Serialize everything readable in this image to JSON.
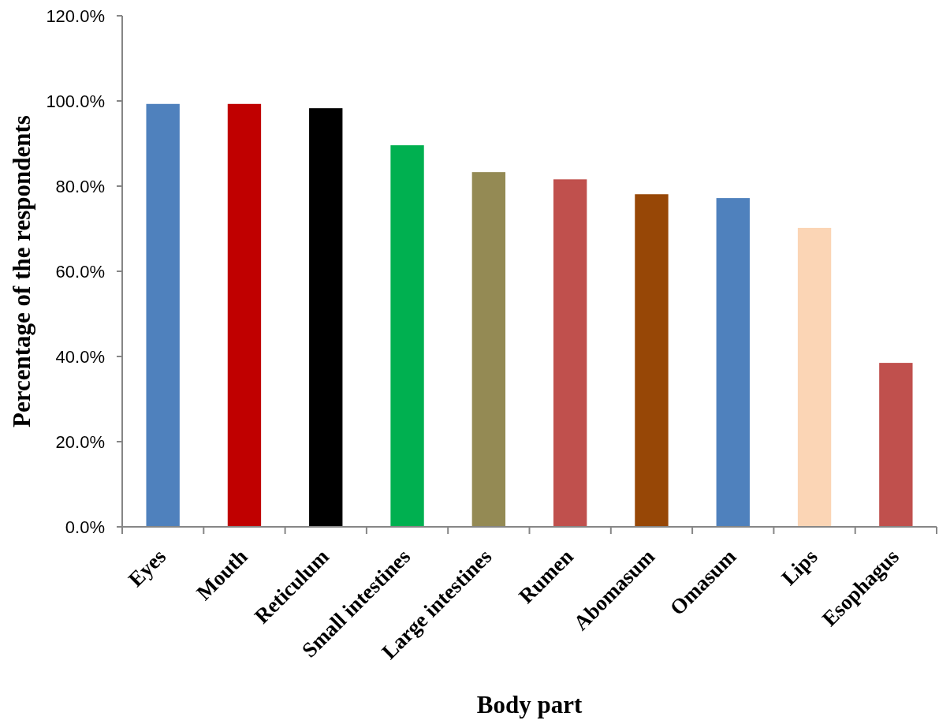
{
  "chart_data": {
    "type": "bar",
    "xlabel": "Body part",
    "ylabel": "Percentage of the respondents",
    "categories": [
      "Eyes",
      "Mouth",
      "Reticulum",
      "Small intestines",
      "Large intestines",
      "Rumen",
      "Abomasum",
      "Omasum",
      "Lips",
      "Esophagus"
    ],
    "values": [
      99.3,
      99.3,
      98.3,
      89.6,
      83.3,
      81.6,
      78.1,
      77.2,
      70.2,
      38.5
    ],
    "colors": [
      "#4f81bd",
      "#c00000",
      "#000000",
      "#00b050",
      "#948a54",
      "#c0504d",
      "#974706",
      "#4f81bd",
      "#fbd5b5",
      "#c0504d"
    ],
    "ylim": [
      0,
      120
    ],
    "yticks": [
      {
        "value": 0,
        "label": "0.0%"
      },
      {
        "value": 20,
        "label": "20.0%"
      },
      {
        "value": 40,
        "label": "40.0%"
      },
      {
        "value": 60,
        "label": "60.0%"
      },
      {
        "value": 80,
        "label": "80.0%"
      },
      {
        "value": 100,
        "label": "100.0%"
      },
      {
        "value": 120,
        "label": "120.0%"
      }
    ],
    "grid": false
  }
}
